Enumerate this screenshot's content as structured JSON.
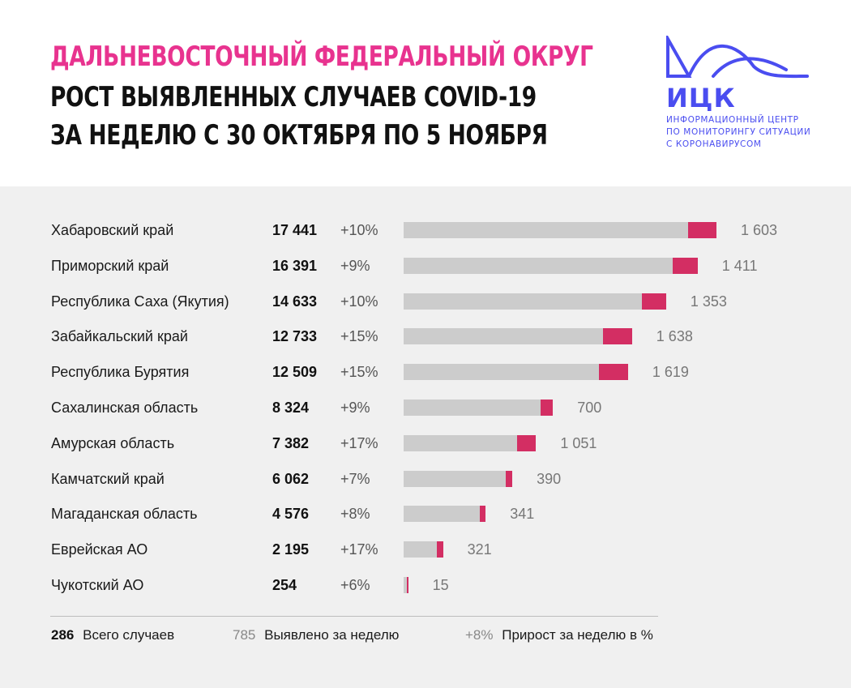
{
  "header": {
    "title_line1": "ДАЛЬНЕВОСТОЧНЫЙ ФЕДЕРАЛЬНЫЙ ОКРУГ",
    "title_line2": "РОСТ ВЫЯВЛЕННЫХ СЛУЧАЕВ COVID-19",
    "title_line3": "ЗА НЕДЕЛЮ С 30 ОКТЯБРЯ ПО 5 НОЯБРЯ",
    "title_color": "#e8338f"
  },
  "logo": {
    "name": "ИЦК",
    "line1": "ИНФОРМАЦИОННЫЙ ЦЕНТР",
    "line2": "ПО МОНИТОРИНГУ СИТУАЦИИ",
    "line3": "С КОРОНАВИРУСОМ",
    "color": "#4a4df0"
  },
  "chart_data": {
    "type": "bar",
    "orientation": "horizontal",
    "stacked": true,
    "categories": [
      "Хабаровский край",
      "Приморский край",
      "Республика Саха (Якутия)",
      "Забайкальский край",
      "Республика Бурятия",
      "Сахалинская область",
      "Амурская область",
      "Камчатский край",
      "Магаданская область",
      "Еврейская АО",
      "Чукотский АО"
    ],
    "totals": [
      17441,
      16391,
      14633,
      12733,
      12509,
      8324,
      7382,
      6062,
      4576,
      2195,
      254
    ],
    "totals_display": [
      "17 441",
      "16 391",
      "14 633",
      "12 733",
      "12 509",
      "8 324",
      "7 382",
      "6 062",
      "4 576",
      "2 195",
      "254"
    ],
    "growth_pct": [
      "+10%",
      "+9%",
      "+10%",
      "+15%",
      "+15%",
      "+9%",
      "+17%",
      "+7%",
      "+8%",
      "+17%",
      "+6%"
    ],
    "weekly": [
      1603,
      1411,
      1353,
      1638,
      1619,
      700,
      1051,
      390,
      341,
      321,
      15
    ],
    "weekly_display": [
      "1 603",
      "1 411",
      "1 353",
      "1 638",
      "1 619",
      "700",
      "1 051",
      "390",
      "341",
      "321",
      "15"
    ],
    "series": [
      {
        "name": "Всего случаев",
        "color": "#cccccc"
      },
      {
        "name": "Выявлено за неделю",
        "color": "#d32e63"
      }
    ],
    "xlim": [
      0,
      17441
    ]
  },
  "legend": {
    "total_value": "286",
    "total_label": "Всего случаев",
    "week_value": "785",
    "week_label": "Выявлено за неделю",
    "pct_value": "+8%",
    "pct_label": "Прирост за неделю в %"
  }
}
